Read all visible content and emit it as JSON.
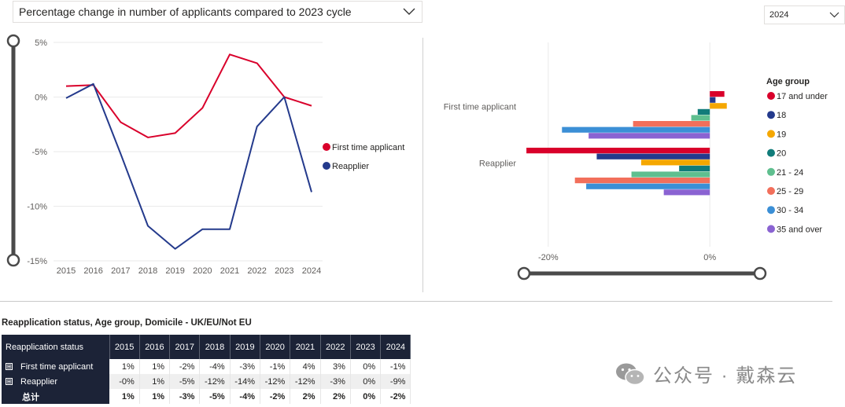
{
  "header": {
    "title_dropdown": "Percentage change in number of applicants compared to 2023 cycle",
    "year_dropdown": "2024"
  },
  "colors": {
    "first_time": "#d9002b",
    "reapplier": "#243a8c",
    "table_header": "#1c2337"
  },
  "chart_data": [
    {
      "type": "line",
      "title": "",
      "x": [
        "2015",
        "2016",
        "2017",
        "2018",
        "2019",
        "2020",
        "2021",
        "2022",
        "2023",
        "2024"
      ],
      "y_ticks": [
        "5%",
        "0%",
        "-5%",
        "-10%",
        "-15%"
      ],
      "y_tick_values": [
        5,
        0,
        -5,
        -10,
        -15
      ],
      "ylim": [
        -15,
        5
      ],
      "series": [
        {
          "name": "First time applicant",
          "color": "#d9002b",
          "values": [
            1,
            1.1,
            -2.3,
            -3.7,
            -3.3,
            -1,
            3.9,
            3.1,
            0,
            -0.8
          ]
        },
        {
          "name": "Reapplier",
          "color": "#243a8c",
          "values": [
            -0.1,
            1.2,
            -5.2,
            -11.8,
            -13.9,
            -12.1,
            -12.1,
            -2.7,
            0,
            -8.7
          ]
        }
      ],
      "legend_position": "right"
    },
    {
      "type": "bar",
      "orientation": "horizontal",
      "categories": [
        "First time applicant",
        "Reapplier"
      ],
      "x_ticks": [
        "-20%",
        "0%"
      ],
      "x_tick_values": [
        -20,
        0
      ],
      "xlim": [
        -23,
        3
      ],
      "legend_title": "Age group",
      "legend_position": "right",
      "series": [
        {
          "name": "17 and under",
          "color": "#d9002b",
          "values": [
            1.8,
            -22.7
          ]
        },
        {
          "name": "18",
          "color": "#243a8c",
          "values": [
            0.7,
            -14
          ]
        },
        {
          "name": "19",
          "color": "#f5a700",
          "values": [
            2.1,
            -8.5
          ]
        },
        {
          "name": "20",
          "color": "#117c7a",
          "values": [
            -1.5,
            -3.8
          ]
        },
        {
          "name": "21 - 24",
          "color": "#5fbf8f",
          "values": [
            -2.3,
            -9.7
          ]
        },
        {
          "name": "25 - 29",
          "color": "#f26f5b",
          "values": [
            -9.5,
            -16.7
          ]
        },
        {
          "name": "30 - 34",
          "color": "#3b8fd6",
          "values": [
            -18.3,
            -15.3
          ]
        },
        {
          "name": "35 and over",
          "color": "#8a63d2",
          "values": [
            -15,
            -5.7
          ]
        }
      ]
    }
  ],
  "table": {
    "title": "Reapplication status, Age group, Domicile - UK/EU/Not EU",
    "row_header": "Reapplication status",
    "years": [
      "2015",
      "2016",
      "2017",
      "2018",
      "2019",
      "2020",
      "2021",
      "2022",
      "2023",
      "2024"
    ],
    "rows": [
      {
        "label": "First time applicant",
        "values": [
          "1%",
          "1%",
          "-2%",
          "-4%",
          "-3%",
          "-1%",
          "4%",
          "3%",
          "0%",
          "-1%"
        ]
      },
      {
        "label": "Reapplier",
        "values": [
          "-0%",
          "1%",
          "-5%",
          "-12%",
          "-14%",
          "-12%",
          "-12%",
          "-3%",
          "0%",
          "-9%"
        ]
      },
      {
        "label": "总计",
        "values": [
          "1%",
          "1%",
          "-3%",
          "-5%",
          "-4%",
          "-2%",
          "2%",
          "2%",
          "0%",
          "-2%"
        ]
      }
    ],
    "expand_glyph": "⊞"
  },
  "watermark": {
    "text": "公众号 · 戴森云"
  }
}
